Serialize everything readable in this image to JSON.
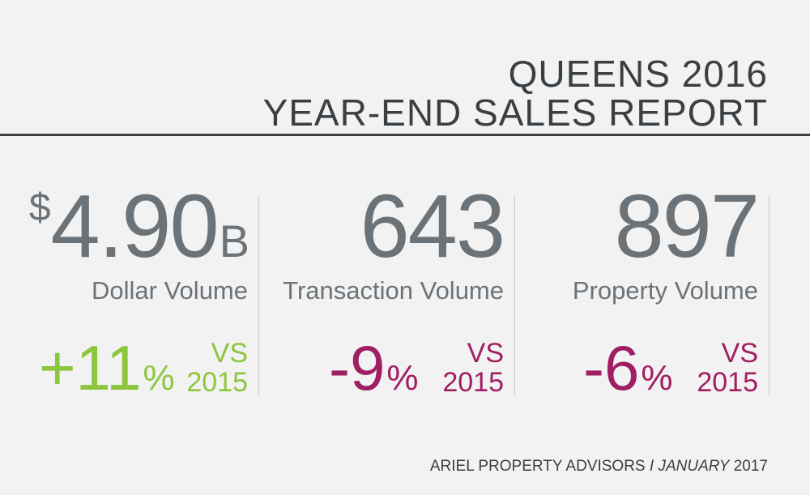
{
  "header": {
    "title_line1": "QUEENS 2016",
    "title_line2": "YEAR-END SALES REPORT"
  },
  "stats": [
    {
      "prefix": "$",
      "value": "4.90",
      "suffix": "B",
      "label": "Dollar Volume",
      "change_value": "+11",
      "change_pct": "%",
      "vs_label": "VS",
      "vs_year": "2015",
      "change_color": "#8cc63f"
    },
    {
      "value": "643",
      "label": "Transaction Volume",
      "change_value": "-9",
      "change_pct": "%",
      "vs_label": "VS",
      "vs_year": "2015",
      "change_color": "#a01f63"
    },
    {
      "value": "897",
      "label": "Property Volume",
      "change_value": "-6",
      "change_pct": "%",
      "vs_label": "VS",
      "vs_year": "2015",
      "change_color": "#a01f63"
    }
  ],
  "footer": {
    "company": "ARIEL PROPERTY ADVISORS",
    "separator": "I",
    "month": "JANUARY",
    "year": "2017"
  },
  "colors": {
    "text_dark": "#3a3f43",
    "text_gray": "#6b7379",
    "positive": "#8cc63f",
    "negative": "#a01f63",
    "background": "#f2f2f2"
  }
}
